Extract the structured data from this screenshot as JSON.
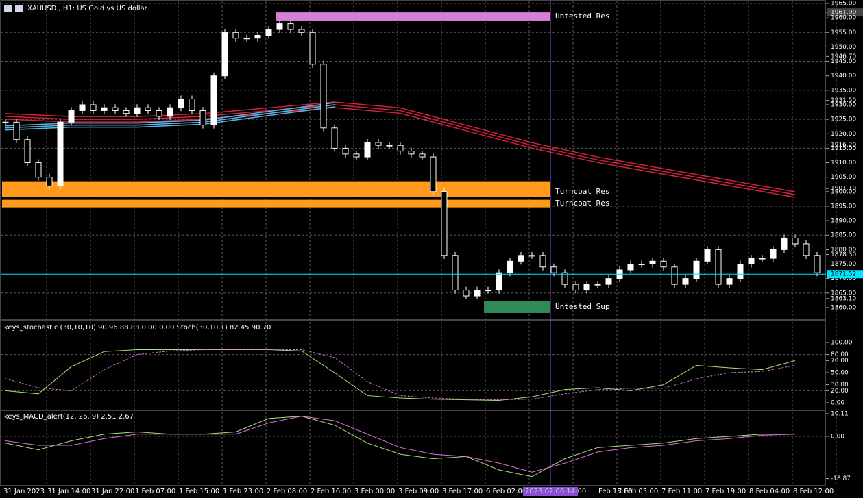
{
  "window": {
    "title": "XAUUSD., H1: US Gold vs US dollar"
  },
  "price": {
    "closes": [
      1924,
      1918,
      1910,
      1905,
      1902,
      1924,
      1928,
      1930,
      1928,
      1929,
      1928,
      1927,
      1929,
      1928,
      1926,
      1929,
      1932,
      1928,
      1923,
      1940,
      1955,
      1953,
      1953,
      1954,
      1956,
      1958,
      1956,
      1955,
      1944,
      1922,
      1915,
      1913,
      1912,
      1917,
      1916,
      1916,
      1914,
      1913,
      1912,
      1900,
      1878,
      1866,
      1864,
      1866,
      1866,
      1872,
      1876,
      1878,
      1878,
      1874,
      1872,
      1868,
      1866,
      1868,
      1868,
      1870,
      1873,
      1875,
      1875,
      1876,
      1874,
      1868,
      1870,
      1876,
      1880,
      1868,
      1870,
      1875,
      1877,
      1877,
      1880,
      1884,
      1882,
      1878,
      1872
    ],
    "ma_red": [
      1926,
      1925,
      1925,
      1926,
      1928,
      1930,
      1928,
      1922,
      1916,
      1911,
      1907,
      1903,
      1899
    ],
    "ma_blue": [
      1922,
      1923,
      1923,
      1924,
      1927,
      1930
    ],
    "axis": [
      {
        "value": 1965,
        "label": "1965.00"
      },
      {
        "value": 1961.9,
        "label": "1961.90"
      },
      {
        "value": 1960,
        "label": "1960.00"
      },
      {
        "value": 1955,
        "label": "1955.00"
      },
      {
        "value": 1950,
        "label": "1950.00"
      },
      {
        "value": 1946.7,
        "label": "1946.70"
      },
      {
        "value": 1945,
        "label": "1945.00"
      },
      {
        "value": 1940,
        "label": "1940.00"
      },
      {
        "value": 1935,
        "label": "1935.00"
      },
      {
        "value": 1931.5,
        "label": "1931.50"
      },
      {
        "value": 1930,
        "label": "1930.00"
      },
      {
        "value": 1925,
        "label": "1925.00"
      },
      {
        "value": 1920,
        "label": "1920.00"
      },
      {
        "value": 1916.2,
        "label": "1916.20"
      },
      {
        "value": 1915,
        "label": "1915.00"
      },
      {
        "value": 1910,
        "label": "1910.00"
      },
      {
        "value": 1905,
        "label": "1905.00"
      },
      {
        "value": 1901.1,
        "label": "1901.10"
      },
      {
        "value": 1900,
        "label": "1900.00"
      },
      {
        "value": 1895,
        "label": "1895.00"
      },
      {
        "value": 1890,
        "label": "1890.00"
      },
      {
        "value": 1885,
        "label": "1885.00"
      },
      {
        "value": 1880,
        "label": "1880.00"
      },
      {
        "value": 1878.3,
        "label": "1878.30"
      },
      {
        "value": 1875,
        "label": "1875.00"
      },
      {
        "value": 1870,
        "label": "1870.00"
      },
      {
        "value": 1865,
        "label": "1865.00"
      },
      {
        "value": 1863.1,
        "label": "1863.10"
      },
      {
        "value": 1860,
        "label": "1860.00"
      }
    ],
    "current": {
      "value": 1871.52,
      "label": "1871.52"
    }
  },
  "zones": [
    {
      "label": "Untested Res",
      "top": 1961.9,
      "bottom": 1959.1,
      "color": "#d67fd6"
    },
    {
      "label": "Turncoat Res",
      "top": 1903.6,
      "bottom": 1898.3,
      "color": "#ff9a1a"
    },
    {
      "label": "Turncoat Res",
      "top": 1897.2,
      "bottom": 1894.6,
      "color": "#ff9a1a"
    },
    {
      "label": "Untested Sup",
      "top": 1862.3,
      "bottom": 1858.1,
      "color": "#2e8b57"
    }
  ],
  "stochastic": {
    "header": "keys_stochastic (30,10,10) 90.96 88.83 0.00 0.00 Stoch(30,10,1) 82.45 90.70",
    "main": [
      20,
      15,
      60,
      85,
      88,
      88,
      88,
      88,
      88,
      86,
      50,
      12,
      8,
      6,
      5,
      4,
      10,
      22,
      25,
      20,
      30,
      62,
      58,
      55,
      70
    ],
    "signal": [
      40,
      25,
      20,
      55,
      80,
      86,
      88,
      88,
      88,
      88,
      75,
      35,
      12,
      8,
      6,
      5,
      6,
      15,
      22,
      24,
      24,
      40,
      50,
      52,
      62
    ],
    "axis": [
      {
        "value": 100,
        "label": "100.00"
      },
      {
        "value": 80,
        "label": "80.00"
      },
      {
        "value": 70,
        "label": "70.00"
      },
      {
        "value": 50,
        "label": "50.00"
      },
      {
        "value": 30,
        "label": "30.00"
      },
      {
        "value": 20,
        "label": "20.00"
      },
      {
        "value": 0,
        "label": "0.00"
      }
    ]
  },
  "macd": {
    "header": "keys_MACD_alert(12, 26, 9) 2.51 2.67",
    "main": [
      -3,
      -6,
      -2,
      1,
      2,
      1,
      1,
      2,
      8,
      9,
      5,
      -3,
      -8,
      -10,
      -9,
      -15,
      -18,
      -10,
      -5,
      -4,
      -3,
      -1,
      0,
      1,
      1
    ],
    "signal": [
      -2,
      -4,
      -4,
      -1,
      1,
      1,
      1,
      1,
      6,
      9,
      7,
      1,
      -5,
      -8,
      -9,
      -12,
      -16,
      -12,
      -7,
      -5,
      -4,
      -2,
      -1,
      0.5,
      1
    ],
    "axis": [
      {
        "value": 10.11,
        "label": "10.11"
      },
      {
        "value": 0,
        "label": "0.00"
      },
      {
        "value": -18.87,
        "label": "-18.87"
      }
    ]
  },
  "time_axis": [
    "31 Jan 2023",
    "31 Jan 14:00",
    "31 Jan 22:00",
    "1 Feb 07:00",
    "1 Feb 15:00",
    "1 Feb 23:00",
    "2 Feb 08:00",
    "2 Feb 16:00",
    "3 Feb 00:00",
    "3 Feb 09:00",
    "3 Feb 17:00",
    "6 Feb 02:00",
    null,
    "Feb 18:00",
    "7 Feb 03:00",
    "7 Feb 11:00",
    "7 Feb 19:00",
    "8 Feb 04:00",
    "8 Feb 12:00"
  ],
  "crosshair": "2023.02.06 14:00"
}
